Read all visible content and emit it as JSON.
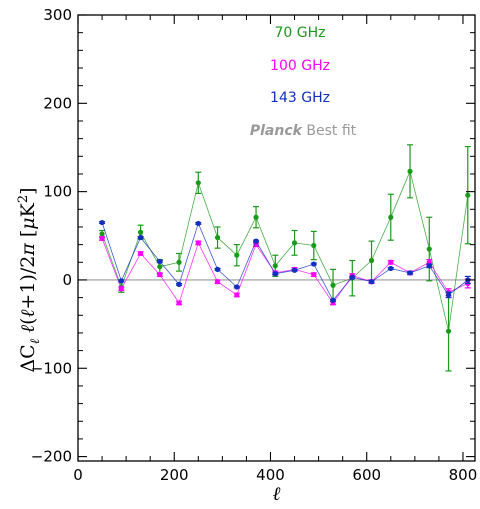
{
  "chart_data": {
    "type": "scatter",
    "xlabel": "ℓ",
    "ylabel": "ΔC ℓ(ℓ+1)/2π [μK²]",
    "ylabel_subscript": "ℓ",
    "xlim": [
      0,
      825
    ],
    "ylim": [
      -205,
      300
    ],
    "xticks": [
      0,
      200,
      400,
      600,
      800
    ],
    "yticks": [
      -200,
      -100,
      0,
      100,
      200,
      300
    ],
    "legend_position": "top-center",
    "zero_line": true,
    "reference_label": {
      "prefix": "Planck",
      "text": "Best fit",
      "color": "#999999"
    },
    "series": [
      {
        "name": "70 GHz",
        "color": "#1a9a1a",
        "x": [
          50,
          90,
          130,
          170,
          210,
          250,
          290,
          330,
          370,
          410,
          450,
          490,
          530,
          570,
          610,
          650,
          690,
          730,
          770,
          810
        ],
        "y": [
          52,
          -8,
          54,
          15,
          20,
          110,
          48,
          28,
          71,
          16,
          42,
          39,
          -6,
          2,
          22,
          71,
          123,
          35,
          -58,
          96
        ],
        "err": [
          4,
          6,
          8,
          8,
          10,
          12,
          12,
          12,
          12,
          12,
          14,
          16,
          18,
          20,
          22,
          26,
          30,
          36,
          45,
          55
        ]
      },
      {
        "name": "100 GHz",
        "color": "#ff00ff",
        "x": [
          50,
          90,
          130,
          170,
          210,
          250,
          290,
          330,
          370,
          410,
          450,
          490,
          530,
          570,
          610,
          650,
          690,
          730,
          770,
          810
        ],
        "y": [
          47,
          -10,
          30,
          6,
          -26,
          42,
          -2,
          -17,
          40,
          8,
          12,
          6,
          -26,
          5,
          -2,
          20,
          8,
          20,
          -14,
          -4
        ],
        "err": [
          2,
          2,
          2,
          2,
          2,
          2,
          2,
          2,
          2,
          2,
          2,
          2,
          2,
          2,
          2,
          2,
          2,
          3,
          4,
          5
        ]
      },
      {
        "name": "143 GHz",
        "color": "#1030c0",
        "x": [
          50,
          90,
          130,
          170,
          210,
          250,
          290,
          330,
          370,
          410,
          450,
          490,
          530,
          570,
          610,
          650,
          690,
          730,
          770,
          810
        ],
        "y": [
          65,
          -1,
          48,
          21,
          -5,
          64,
          12,
          -8,
          44,
          7,
          11,
          18,
          -23,
          3,
          -2,
          13,
          8,
          16,
          -17,
          0
        ],
        "err": [
          1,
          1,
          1,
          1,
          1,
          1,
          1,
          1,
          1,
          1,
          1,
          1,
          1,
          1,
          1,
          1,
          1,
          2,
          3,
          4
        ]
      }
    ]
  }
}
